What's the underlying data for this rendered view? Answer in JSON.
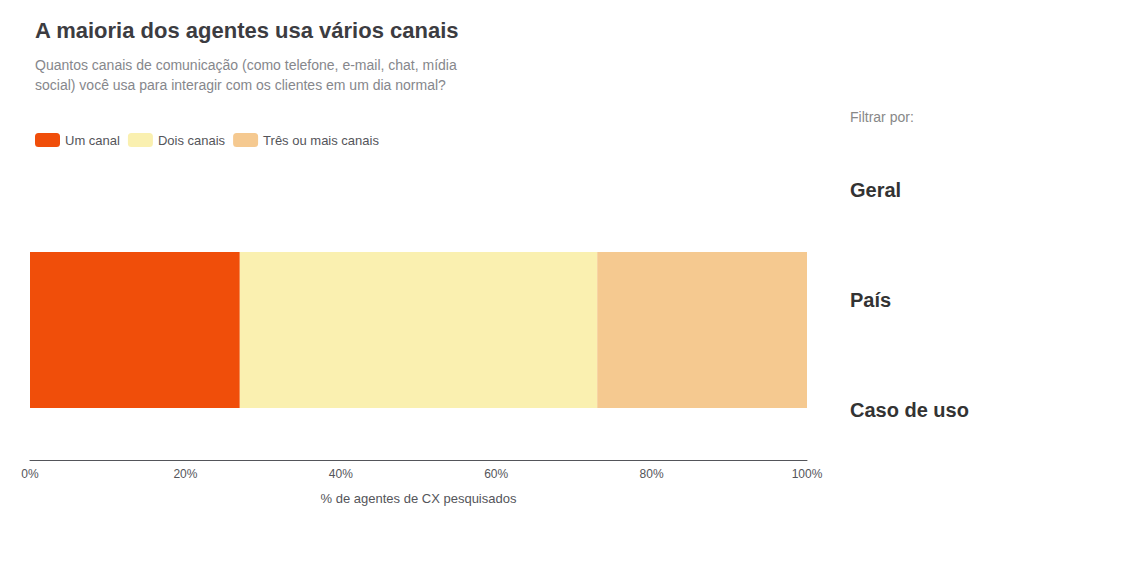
{
  "chart_data": {
    "type": "bar",
    "orientation": "horizontal",
    "stacked": true,
    "title": "A maioria dos agentes usa vários canais",
    "subtitle": [
      "Quantos canais de comunicação (como telefone, e-mail, chat, mídia",
      "social) você usa para interagir com os clientes em um dia normal?"
    ],
    "xlabel": "% de agentes de CX pesquisados",
    "categories": [
      null
    ],
    "series": [
      {
        "name": "Um canal",
        "color": "#F04E0A",
        "values": [
          27
        ]
      },
      {
        "name": "Dois canais",
        "color": "#FAF0B0",
        "values": [
          46
        ]
      },
      {
        "name": "Três ou mais canais",
        "color": "#F5C990",
        "values": [
          27
        ]
      }
    ],
    "xlim": [
      0,
      100
    ],
    "xticks": [
      {
        "value": 0,
        "label": "0%"
      },
      {
        "value": 20,
        "label": "20%"
      },
      {
        "value": 40,
        "label": "40%"
      },
      {
        "value": 60,
        "label": "60%"
      },
      {
        "value": 80,
        "label": "80%"
      },
      {
        "value": 100,
        "label": "100%"
      }
    ],
    "grid": false,
    "legend": "top",
    "tick_labels": "x",
    "annotations": [
      "Filtrar por:",
      "Geral",
      "País",
      "Caso de uso"
    ]
  }
}
